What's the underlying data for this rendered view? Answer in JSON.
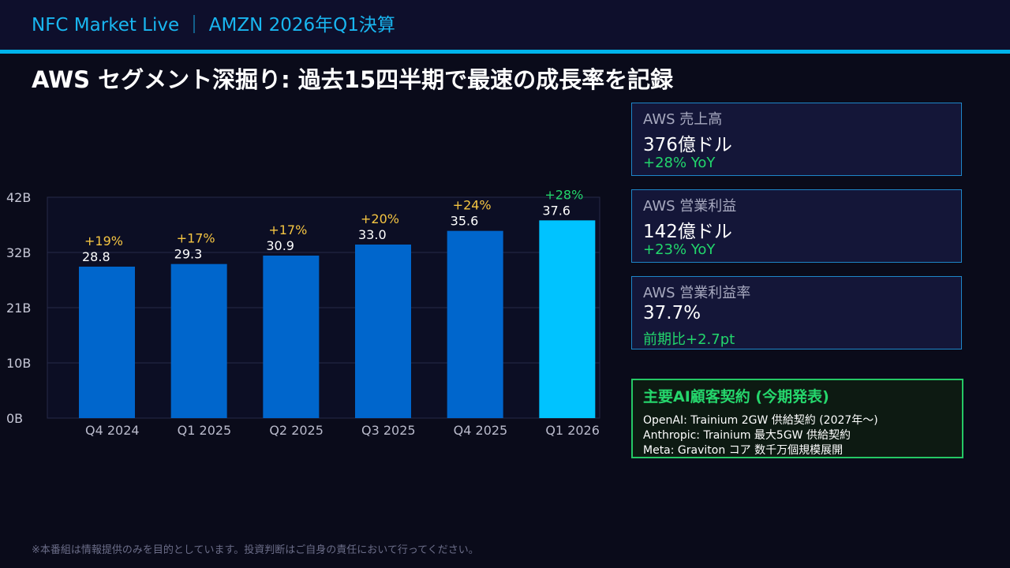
{
  "header": {
    "title": "NFC Market Live ｜ AMZN 2026年Q1決算"
  },
  "headline": "AWS セグメント深掘り: 過去15四半期で最速の成長率を記録",
  "chart_data": {
    "type": "bar",
    "title": "",
    "xlabel": "",
    "ylabel": "",
    "categories": [
      "Q4 2024",
      "Q1 2025",
      "Q2 2025",
      "Q3 2025",
      "Q4 2025",
      "Q1 2026"
    ],
    "values": [
      28.8,
      29.3,
      30.9,
      33.0,
      35.6,
      37.6
    ],
    "value_labels": [
      "28.8",
      "29.3",
      "30.9",
      "33.0",
      "35.6",
      "37.6"
    ],
    "growth_labels": [
      "+19%",
      "+17%",
      "+17%",
      "+20%",
      "+24%",
      "+28%"
    ],
    "y_ticks": [
      0,
      10.5,
      21,
      31.5,
      42
    ],
    "y_tick_labels": [
      "0B",
      "10B",
      "21B",
      "32B",
      "42B"
    ],
    "ylim": [
      0,
      42
    ],
    "grid": true,
    "highlight_index": 5,
    "colors": {
      "bar": "#0066cc",
      "bar_highlight": "#00c3ff",
      "growth": "#f5c542",
      "growth_highlight": "#22d66c"
    }
  },
  "kpis": [
    {
      "label": "AWS 売上高",
      "value": "376億ドル",
      "change": "+28% YoY"
    },
    {
      "label": "AWS 営業利益",
      "value": "142億ドル",
      "change": "+23% YoY"
    },
    {
      "label": "AWS 営業利益率",
      "value": "37.7%",
      "change": "前期比+2.7pt"
    }
  ],
  "ai_customers": {
    "title": "主要AI顧客契約 (今期発表)",
    "items": [
      "OpenAI: Trainium 2GW 供給契約 (2027年〜)",
      "Anthropic: Trainium 最大5GW 供給契約",
      "Meta: Graviton コア 数千万個規模展開"
    ]
  },
  "disclaimer": "※本番組は情報提供のみを目的としています。投資判断はご自身の責任において行ってください。"
}
